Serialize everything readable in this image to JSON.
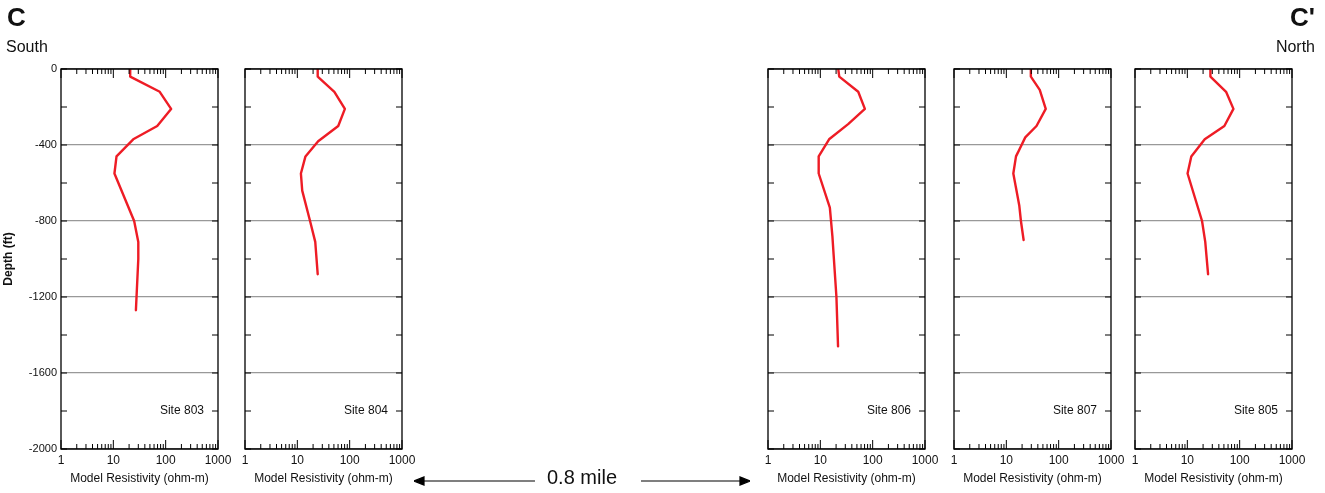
{
  "chart_data": [
    {
      "type": "line",
      "xlabel": "Model Resistivity (ohm-m)",
      "ylabel": "Depth (ft)",
      "log": "x",
      "grid": "y",
      "marker": "none",
      "line_style": "solid",
      "xlim": [
        1,
        1000
      ],
      "xticks": [
        1,
        {
          "value": 2,
          "label": null
        },
        {
          "value": 3,
          "label": null
        },
        {
          "value": 4,
          "label": null
        },
        {
          "value": 5,
          "label": null
        },
        {
          "value": 6,
          "label": null
        },
        {
          "value": 7,
          "label": null
        },
        {
          "value": 8,
          "label": null
        },
        {
          "value": 9,
          "label": null
        },
        10,
        {
          "value": 20,
          "label": null
        },
        {
          "value": 30,
          "label": null
        },
        {
          "value": 40,
          "label": null
        },
        {
          "value": 50,
          "label": null
        },
        {
          "value": 60,
          "label": null
        },
        {
          "value": 70,
          "label": null
        },
        {
          "value": 80,
          "label": null
        },
        {
          "value": 90,
          "label": null
        },
        100,
        {
          "value": 200,
          "label": null
        },
        {
          "value": 300,
          "label": null
        },
        {
          "value": 400,
          "label": null
        },
        {
          "value": 500,
          "label": null
        },
        {
          "value": 600,
          "label": null
        },
        {
          "value": 700,
          "label": null
        },
        {
          "value": 800,
          "label": null
        },
        {
          "value": 900,
          "label": null
        },
        1000
      ],
      "ylim": [
        -2000,
        0
      ],
      "yticks": [
        -2000,
        {
          "value": -1800,
          "label": null
        },
        -1600,
        {
          "value": -1400,
          "label": null
        },
        -1200,
        {
          "value": -1000,
          "label": null
        },
        -800,
        {
          "value": -600,
          "label": null
        },
        -400,
        {
          "value": -200,
          "label": null
        },
        0
      ],
      "series": [
        {
          "color": "#ee1c25",
          "x": [
            21,
            21,
            77,
            127,
            69,
            24,
            11.5,
            10.5,
            25,
            30,
            30,
            27
          ],
          "values": [
            0,
            -40,
            -120,
            -210,
            -300,
            -370,
            -460,
            -550,
            -800,
            -910,
            -1000,
            -1270
          ]
        }
      ],
      "annotations": [
        "Site 803",
        "C",
        "South"
      ]
    },
    {
      "type": "line",
      "xlabel": "Model Resistivity (ohm-m)",
      "log": "x",
      "grid": "y",
      "marker": "none",
      "line_style": "solid",
      "tick_labels": "x",
      "xlim": [
        1,
        1000
      ],
      "xticks": [
        1,
        {
          "value": 2,
          "label": null
        },
        {
          "value": 3,
          "label": null
        },
        {
          "value": 4,
          "label": null
        },
        {
          "value": 5,
          "label": null
        },
        {
          "value": 6,
          "label": null
        },
        {
          "value": 7,
          "label": null
        },
        {
          "value": 8,
          "label": null
        },
        {
          "value": 9,
          "label": null
        },
        10,
        {
          "value": 20,
          "label": null
        },
        {
          "value": 30,
          "label": null
        },
        {
          "value": 40,
          "label": null
        },
        {
          "value": 50,
          "label": null
        },
        {
          "value": 60,
          "label": null
        },
        {
          "value": 70,
          "label": null
        },
        {
          "value": 80,
          "label": null
        },
        {
          "value": 90,
          "label": null
        },
        100,
        {
          "value": 200,
          "label": null
        },
        {
          "value": 300,
          "label": null
        },
        {
          "value": 400,
          "label": null
        },
        {
          "value": 500,
          "label": null
        },
        {
          "value": 600,
          "label": null
        },
        {
          "value": 700,
          "label": null
        },
        {
          "value": 800,
          "label": null
        },
        {
          "value": 900,
          "label": null
        },
        1000
      ],
      "ylim": [
        -2000,
        0
      ],
      "yticks": [
        -2000,
        {
          "value": -1800,
          "label": null
        },
        -1600,
        {
          "value": -1400,
          "label": null
        },
        -1200,
        {
          "value": -1000,
          "label": null
        },
        -800,
        {
          "value": -600,
          "label": null
        },
        -400,
        {
          "value": -200,
          "label": null
        },
        0
      ],
      "series": [
        {
          "color": "#ee1c25",
          "x": [
            24.5,
            24.5,
            51,
            81,
            60.5,
            25,
            14.3,
            11.7,
            12.4,
            17.5,
            22,
            24.5
          ],
          "values": [
            0,
            -40,
            -120,
            -210,
            -300,
            -380,
            -460,
            -550,
            -640,
            -800,
            -910,
            -1080
          ]
        }
      ],
      "annotations": [
        "Site 804",
        "0.8 mile"
      ]
    },
    {
      "type": "line",
      "xlabel": "Model Resistivity (ohm-m)",
      "log": "x",
      "grid": "y",
      "marker": "none",
      "line_style": "solid",
      "tick_labels": "x",
      "xlim": [
        1,
        1000
      ],
      "xticks": [
        1,
        {
          "value": 2,
          "label": null
        },
        {
          "value": 3,
          "label": null
        },
        {
          "value": 4,
          "label": null
        },
        {
          "value": 5,
          "label": null
        },
        {
          "value": 6,
          "label": null
        },
        {
          "value": 7,
          "label": null
        },
        {
          "value": 8,
          "label": null
        },
        {
          "value": 9,
          "label": null
        },
        10,
        {
          "value": 20,
          "label": null
        },
        {
          "value": 30,
          "label": null
        },
        {
          "value": 40,
          "label": null
        },
        {
          "value": 50,
          "label": null
        },
        {
          "value": 60,
          "label": null
        },
        {
          "value": 70,
          "label": null
        },
        {
          "value": 80,
          "label": null
        },
        {
          "value": 90,
          "label": null
        },
        100,
        {
          "value": 200,
          "label": null
        },
        {
          "value": 300,
          "label": null
        },
        {
          "value": 400,
          "label": null
        },
        {
          "value": 500,
          "label": null
        },
        {
          "value": 600,
          "label": null
        },
        {
          "value": 700,
          "label": null
        },
        {
          "value": 800,
          "label": null
        },
        {
          "value": 900,
          "label": null
        },
        1000
      ],
      "ylim": [
        -2000,
        0
      ],
      "yticks": [
        -2000,
        {
          "value": -1800,
          "label": null
        },
        -1600,
        {
          "value": -1400,
          "label": null
        },
        -1200,
        {
          "value": -1000,
          "label": null
        },
        -800,
        {
          "value": -600,
          "label": null
        },
        -400,
        {
          "value": -200,
          "label": null
        },
        0
      ],
      "series": [
        {
          "color": "#ee1c25",
          "x": [
            22,
            23,
            53,
            71,
            34,
            14.7,
            9.3,
            9.3,
            15.2,
            17,
            20.3,
            21.8
          ],
          "values": [
            0,
            -40,
            -120,
            -210,
            -290,
            -370,
            -460,
            -550,
            -730,
            -880,
            -1200,
            -1460
          ]
        }
      ],
      "annotations": [
        "Site 806"
      ]
    },
    {
      "type": "line",
      "xlabel": "Model Resistivity (ohm-m)",
      "log": "x",
      "grid": "y",
      "marker": "none",
      "line_style": "solid",
      "tick_labels": "x",
      "xlim": [
        1,
        1000
      ],
      "xticks": [
        1,
        {
          "value": 2,
          "label": null
        },
        {
          "value": 3,
          "label": null
        },
        {
          "value": 4,
          "label": null
        },
        {
          "value": 5,
          "label": null
        },
        {
          "value": 6,
          "label": null
        },
        {
          "value": 7,
          "label": null
        },
        {
          "value": 8,
          "label": null
        },
        {
          "value": 9,
          "label": null
        },
        10,
        {
          "value": 20,
          "label": null
        },
        {
          "value": 30,
          "label": null
        },
        {
          "value": 40,
          "label": null
        },
        {
          "value": 50,
          "label": null
        },
        {
          "value": 60,
          "label": null
        },
        {
          "value": 70,
          "label": null
        },
        {
          "value": 80,
          "label": null
        },
        {
          "value": 90,
          "label": null
        },
        100,
        {
          "value": 200,
          "label": null
        },
        {
          "value": 300,
          "label": null
        },
        {
          "value": 400,
          "label": null
        },
        {
          "value": 500,
          "label": null
        },
        {
          "value": 600,
          "label": null
        },
        {
          "value": 700,
          "label": null
        },
        {
          "value": 800,
          "label": null
        },
        {
          "value": 900,
          "label": null
        },
        1000
      ],
      "ylim": [
        -2000,
        0
      ],
      "yticks": [
        -2000,
        {
          "value": -1800,
          "label": null
        },
        -1600,
        {
          "value": -1400,
          "label": null
        },
        -1200,
        {
          "value": -1000,
          "label": null
        },
        -800,
        {
          "value": -600,
          "label": null
        },
        -400,
        {
          "value": -200,
          "label": null
        },
        0
      ],
      "series": [
        {
          "color": "#ee1c25",
          "x": [
            29.4,
            29.4,
            43.5,
            56.6,
            37.7,
            23,
            15.3,
            13.6,
            17.7,
            19,
            21.4
          ],
          "values": [
            0,
            -40,
            -110,
            -210,
            -300,
            -360,
            -460,
            -550,
            -720,
            -800,
            -900
          ]
        }
      ],
      "annotations": [
        "Site 807"
      ]
    },
    {
      "type": "line",
      "xlabel": "Model Resistivity (ohm-m)",
      "log": "x",
      "grid": "y",
      "marker": "none",
      "line_style": "solid",
      "tick_labels": "x",
      "xlim": [
        1,
        1000
      ],
      "xticks": [
        1,
        {
          "value": 2,
          "label": null
        },
        {
          "value": 3,
          "label": null
        },
        {
          "value": 4,
          "label": null
        },
        {
          "value": 5,
          "label": null
        },
        {
          "value": 6,
          "label": null
        },
        {
          "value": 7,
          "label": null
        },
        {
          "value": 8,
          "label": null
        },
        {
          "value": 9,
          "label": null
        },
        10,
        {
          "value": 20,
          "label": null
        },
        {
          "value": 30,
          "label": null
        },
        {
          "value": 40,
          "label": null
        },
        {
          "value": 50,
          "label": null
        },
        {
          "value": 60,
          "label": null
        },
        {
          "value": 70,
          "label": null
        },
        {
          "value": 80,
          "label": null
        },
        {
          "value": 90,
          "label": null
        },
        100,
        {
          "value": 200,
          "label": null
        },
        {
          "value": 300,
          "label": null
        },
        {
          "value": 400,
          "label": null
        },
        {
          "value": 500,
          "label": null
        },
        {
          "value": 600,
          "label": null
        },
        {
          "value": 700,
          "label": null
        },
        {
          "value": 800,
          "label": null
        },
        {
          "value": 900,
          "label": null
        },
        1000
      ],
      "ylim": [
        -2000,
        0
      ],
      "yticks": [
        -2000,
        {
          "value": -1800,
          "label": null
        },
        -1600,
        {
          "value": -1400,
          "label": null
        },
        -1200,
        {
          "value": -1000,
          "label": null
        },
        -800,
        {
          "value": -600,
          "label": null
        },
        -400,
        {
          "value": -200,
          "label": null
        },
        0
      ],
      "series": [
        {
          "color": "#ee1c25",
          "x": [
            27.6,
            27.6,
            55,
            76,
            51,
            21.5,
            11.9,
            10.1,
            19.1,
            22,
            24.9
          ],
          "values": [
            0,
            -40,
            -120,
            -210,
            -300,
            -370,
            -460,
            -550,
            -800,
            -910,
            -1080
          ]
        }
      ],
      "annotations": [
        "Site 805",
        "C'",
        "North"
      ]
    }
  ]
}
